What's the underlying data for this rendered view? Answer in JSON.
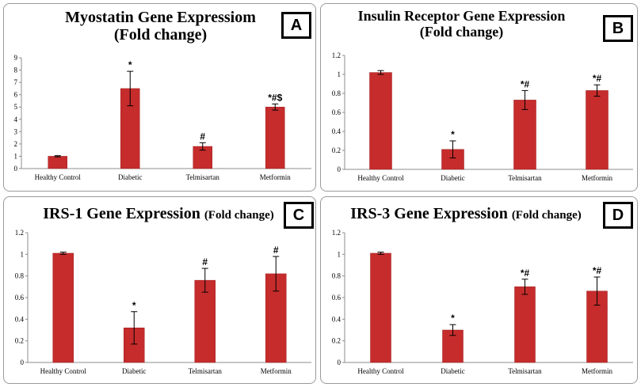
{
  "colors": {
    "bar": "#c62c2c",
    "bar_edge": "#a01c1c",
    "axis": "#8c8c8c",
    "text": "#000000"
  },
  "chart_data": [
    {
      "id": "A",
      "type": "bar",
      "badge": "A",
      "title_line1": "Myostatin Gene Expressiom",
      "title_line2": "(Fold change)",
      "title_suffix": "",
      "categories": [
        "Healthy Control",
        "Diabetic",
        "Telmisartan",
        "Metformin"
      ],
      "values": [
        1.0,
        6.5,
        1.8,
        5.0
      ],
      "errors": [
        0.05,
        1.4,
        0.3,
        0.25
      ],
      "significance": [
        "",
        "*",
        "#",
        "*#$"
      ],
      "ylim": [
        0,
        9
      ],
      "yticks": [
        0,
        1,
        2,
        3,
        4,
        5,
        6,
        7,
        8,
        9
      ],
      "ytick_labels": [
        "0",
        "1",
        "2",
        "3",
        "4",
        "5",
        "6",
        "7",
        "8",
        "9"
      ],
      "xlabel": "",
      "ylabel": ""
    },
    {
      "id": "B",
      "type": "bar",
      "badge": "B",
      "title_line1": "Insulin Receptor Gene Expression",
      "title_line2": "(Fold change)",
      "title_suffix": "",
      "categories": [
        "Healthy Control",
        "Diabetic",
        "Telmisartan",
        "Metformin"
      ],
      "values": [
        1.02,
        0.21,
        0.73,
        0.83
      ],
      "errors": [
        0.02,
        0.09,
        0.1,
        0.06
      ],
      "significance": [
        "",
        "*",
        "*#",
        "*#"
      ],
      "ylim": [
        0,
        1.2
      ],
      "yticks": [
        0,
        0.2,
        0.4,
        0.6,
        0.8,
        1,
        1.2
      ],
      "ytick_labels": [
        "0",
        "0.2",
        "0.4",
        "0.6",
        "0.8",
        "1",
        "1.2"
      ],
      "xlabel": "",
      "ylabel": ""
    },
    {
      "id": "C",
      "type": "bar",
      "badge": "C",
      "title_line1": "IRS-1 Gene Expression",
      "title_line2": "",
      "title_suffix": "(Fold change)",
      "categories": [
        "Healthy Control",
        "Diabetic",
        "Telmisartan",
        "Metformin"
      ],
      "values": [
        1.01,
        0.32,
        0.76,
        0.82
      ],
      "errors": [
        0.01,
        0.15,
        0.11,
        0.16
      ],
      "significance": [
        "",
        "*",
        "#",
        "#"
      ],
      "ylim": [
        0,
        1.2
      ],
      "yticks": [
        0,
        0.2,
        0.4,
        0.6,
        0.8,
        1,
        1.2
      ],
      "ytick_labels": [
        "0",
        "0.2",
        "0.4",
        "0.6",
        "0.8",
        "1",
        "1.2"
      ],
      "xlabel": "",
      "ylabel": ""
    },
    {
      "id": "D",
      "type": "bar",
      "badge": "D",
      "title_line1": "IRS-3 Gene Expression",
      "title_line2": "",
      "title_suffix": "(Fold change)",
      "categories": [
        "Healthy Control",
        "Diabetic",
        "Telmisartan",
        "Metformin"
      ],
      "values": [
        1.01,
        0.3,
        0.7,
        0.66
      ],
      "errors": [
        0.01,
        0.05,
        0.07,
        0.13
      ],
      "significance": [
        "",
        "*",
        "*#",
        "*#"
      ],
      "ylim": [
        0,
        1.2
      ],
      "yticks": [
        0,
        0.2,
        0.4,
        0.6,
        0.8,
        1,
        1.2
      ],
      "ytick_labels": [
        "0",
        "0.2",
        "0.4",
        "0.6",
        "0.8",
        "1",
        "1.2"
      ],
      "xlabel": "",
      "ylabel": ""
    }
  ]
}
